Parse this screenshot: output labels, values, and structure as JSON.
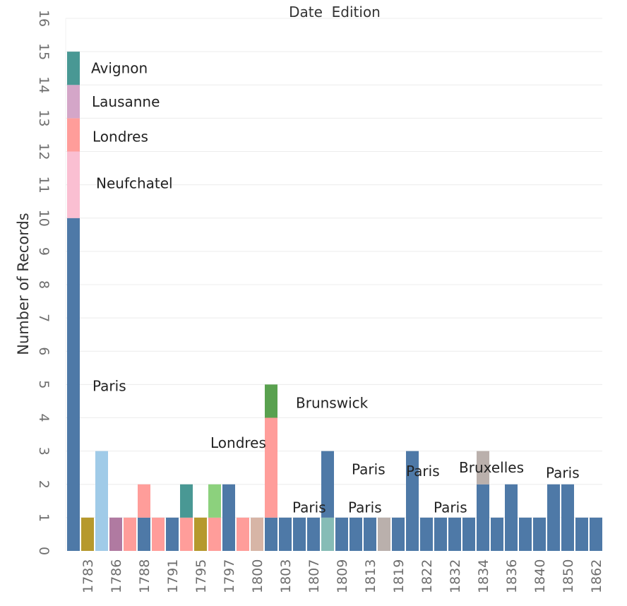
{
  "chart_data": {
    "type": "bar",
    "stacked": true,
    "title": "Date  Edition",
    "xlabel": "",
    "ylabel": "Number of Records",
    "ylim": [
      0,
      16
    ],
    "yticks": [
      0,
      1,
      2,
      3,
      4,
      5,
      6,
      7,
      8,
      9,
      10,
      11,
      12,
      13,
      14,
      15,
      16
    ],
    "grid": true,
    "legend": "none",
    "colors": {
      "Paris": "#4e79a7",
      "Neufchatel": "#fabfd2",
      "Londres": "#ff9d9a",
      "Lausanne": "#d4a6c8",
      "Avignon": "#499894",
      "Brunswick": "#59a14f",
      "Bruxelles": "#bab0ac",
      "gold": "#b6992d",
      "lightblue": "#a0cbe8",
      "purple": "#b07aa1",
      "teal": "#499894",
      "lightgreen": "#8cd17d",
      "tan": "#d7b5a6",
      "lightteal": "#86bcb6",
      "gray": "#bab0ac"
    },
    "x_tick_labels": [
      "1783",
      "1786",
      "1788",
      "1791",
      "1795",
      "1797",
      "1800",
      "1803",
      "1807",
      "1809",
      "1813",
      "1819",
      "1822",
      "1832",
      "1834",
      "1836",
      "1840",
      "1850",
      "1862"
    ],
    "bars": [
      {
        "segments": [
          {
            "c": "Paris",
            "v": 10
          },
          {
            "c": "Neufchatel",
            "v": 2
          },
          {
            "c": "Londres",
            "v": 1
          },
          {
            "c": "Lausanne",
            "v": 1
          },
          {
            "c": "Avignon",
            "v": 1
          }
        ]
      },
      {
        "label": "1783",
        "segments": [
          {
            "c": "gold",
            "v": 1
          }
        ]
      },
      {
        "segments": [
          {
            "c": "lightblue",
            "v": 3
          }
        ]
      },
      {
        "label": "1786",
        "segments": [
          {
            "c": "purple",
            "v": 1
          }
        ]
      },
      {
        "segments": [
          {
            "c": "Londres",
            "v": 1
          }
        ]
      },
      {
        "label": "1788",
        "segments": [
          {
            "c": "Paris",
            "v": 1
          },
          {
            "c": "Londres",
            "v": 1
          }
        ]
      },
      {
        "segments": [
          {
            "c": "Londres",
            "v": 1
          }
        ]
      },
      {
        "label": "1791",
        "segments": [
          {
            "c": "Paris",
            "v": 1
          }
        ]
      },
      {
        "segments": [
          {
            "c": "Londres",
            "v": 1
          },
          {
            "c": "teal",
            "v": 1
          }
        ]
      },
      {
        "label": "1795",
        "segments": [
          {
            "c": "gold",
            "v": 1
          }
        ]
      },
      {
        "segments": [
          {
            "c": "Londres",
            "v": 1
          },
          {
            "c": "lightgreen",
            "v": 1
          }
        ]
      },
      {
        "label": "1797",
        "segments": [
          {
            "c": "Paris",
            "v": 2
          }
        ]
      },
      {
        "segments": [
          {
            "c": "Londres",
            "v": 1
          }
        ]
      },
      {
        "label": "1800",
        "segments": [
          {
            "c": "tan",
            "v": 1
          }
        ]
      },
      {
        "segments": [
          {
            "c": "Paris",
            "v": 1
          },
          {
            "c": "Londres",
            "v": 3
          },
          {
            "c": "Brunswick",
            "v": 1
          }
        ]
      },
      {
        "label": "1803",
        "segments": [
          {
            "c": "Paris",
            "v": 1
          }
        ]
      },
      {
        "segments": [
          {
            "c": "Paris",
            "v": 1
          }
        ]
      },
      {
        "label": "1807",
        "segments": [
          {
            "c": "Paris",
            "v": 1
          }
        ]
      },
      {
        "segments": [
          {
            "c": "lightteal",
            "v": 1
          },
          {
            "c": "Paris",
            "v": 2
          }
        ]
      },
      {
        "label": "1809",
        "segments": [
          {
            "c": "Paris",
            "v": 1
          }
        ]
      },
      {
        "segments": [
          {
            "c": "Paris",
            "v": 1
          }
        ]
      },
      {
        "label": "1813",
        "segments": [
          {
            "c": "Paris",
            "v": 1
          }
        ]
      },
      {
        "segments": [
          {
            "c": "gray",
            "v": 1
          }
        ]
      },
      {
        "label": "1819",
        "segments": [
          {
            "c": "Paris",
            "v": 1
          }
        ]
      },
      {
        "segments": [
          {
            "c": "Paris",
            "v": 3
          }
        ]
      },
      {
        "label": "1822",
        "segments": [
          {
            "c": "Paris",
            "v": 1
          }
        ]
      },
      {
        "segments": [
          {
            "c": "Paris",
            "v": 1
          }
        ]
      },
      {
        "label": "1832",
        "segments": [
          {
            "c": "Paris",
            "v": 1
          }
        ]
      },
      {
        "segments": [
          {
            "c": "Paris",
            "v": 1
          }
        ]
      },
      {
        "label": "1834",
        "segments": [
          {
            "c": "Paris",
            "v": 2
          },
          {
            "c": "Bruxelles",
            "v": 1
          }
        ]
      },
      {
        "segments": [
          {
            "c": "Paris",
            "v": 1
          }
        ]
      },
      {
        "label": "1836",
        "segments": [
          {
            "c": "Paris",
            "v": 2
          }
        ]
      },
      {
        "segments": [
          {
            "c": "Paris",
            "v": 1
          }
        ]
      },
      {
        "label": "1840",
        "segments": [
          {
            "c": "Paris",
            "v": 1
          }
        ]
      },
      {
        "segments": [
          {
            "c": "Paris",
            "v": 2
          }
        ]
      },
      {
        "label": "1850",
        "segments": [
          {
            "c": "Paris",
            "v": 2
          }
        ]
      },
      {
        "segments": [
          {
            "c": "Paris",
            "v": 1
          }
        ]
      },
      {
        "label": "1862",
        "segments": [
          {
            "c": "Paris",
            "v": 1
          }
        ]
      }
    ],
    "annotations": [
      {
        "text": "Avignon",
        "bar": 0,
        "y": 14.5,
        "dx": 16
      },
      {
        "text": "Lausanne",
        "bar": 0,
        "y": 13.5,
        "dx": 17
      },
      {
        "text": "Londres",
        "bar": 0,
        "y": 12.45,
        "dx": 18
      },
      {
        "text": "Neufchatel",
        "bar": 0,
        "y": 11.05,
        "dx": 23
      },
      {
        "text": "Paris",
        "bar": 0,
        "y": 4.95,
        "dx": 18
      },
      {
        "text": "Londres",
        "bar": 14,
        "y": 3.25,
        "dx": -95
      },
      {
        "text": "Brunswick",
        "bar": 14,
        "y": 4.45,
        "dx": 26
      },
      {
        "text": "Paris",
        "bar": 15,
        "y": 1.3,
        "dx": 1
      },
      {
        "text": "Paris",
        "bar": 19,
        "y": 2.45,
        "dx": 5
      },
      {
        "text": "Paris",
        "bar": 19,
        "y": 1.3,
        "dx": 0
      },
      {
        "text": "Paris",
        "bar": 24,
        "y": 2.4,
        "dx": -18
      },
      {
        "text": "Paris",
        "bar": 25,
        "y": 1.3,
        "dx": 1
      },
      {
        "text": "Bruxelles",
        "bar": 29,
        "y": 2.5,
        "dx": -43
      },
      {
        "text": "Paris",
        "bar": 33,
        "y": 2.35,
        "dx": 0
      }
    ]
  }
}
